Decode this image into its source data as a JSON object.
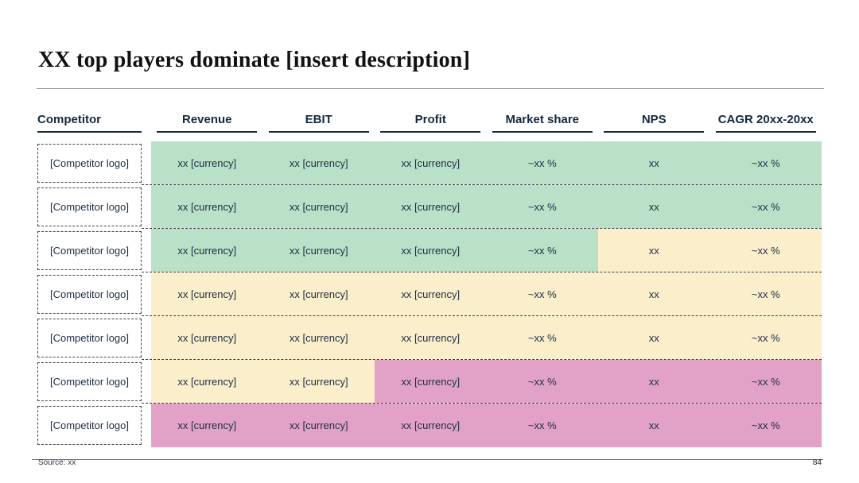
{
  "slide": {
    "title": "XX top players dominate [insert description]",
    "footer": {
      "source": "Source: xx",
      "page_number": "84"
    }
  },
  "colors": {
    "green": "#b9e1c8",
    "yellow": "#fbeecb",
    "pink": "#e2a2c7",
    "header_text": "#14293e",
    "cell_text": "#1d2d42"
  },
  "table": {
    "logo_placeholder": "[Competitor logo]",
    "columns": [
      {
        "key": "competitor",
        "label": "Competitor"
      },
      {
        "key": "revenue",
        "label": "Revenue"
      },
      {
        "key": "ebit",
        "label": "EBIT"
      },
      {
        "key": "profit",
        "label": "Profit"
      },
      {
        "key": "market-share",
        "label": "Market share"
      },
      {
        "key": "nps",
        "label": "NPS"
      },
      {
        "key": "cagr",
        "label": "CAGR 20xx-20xx"
      }
    ],
    "rows": [
      {
        "cells": [
          {
            "text": "xx [currency]",
            "color": "green"
          },
          {
            "text": "xx [currency]",
            "color": "green"
          },
          {
            "text": "xx [currency]",
            "color": "green"
          },
          {
            "text": "~xx %",
            "color": "green"
          },
          {
            "text": "xx",
            "color": "green"
          },
          {
            "text": "~xx %",
            "color": "green"
          }
        ]
      },
      {
        "cells": [
          {
            "text": "xx [currency]",
            "color": "green"
          },
          {
            "text": "xx [currency]",
            "color": "green"
          },
          {
            "text": "xx [currency]",
            "color": "green"
          },
          {
            "text": "~xx %",
            "color": "green"
          },
          {
            "text": "xx",
            "color": "green"
          },
          {
            "text": "~xx %",
            "color": "green"
          }
        ]
      },
      {
        "cells": [
          {
            "text": "xx [currency]",
            "color": "green"
          },
          {
            "text": "xx [currency]",
            "color": "green"
          },
          {
            "text": "xx [currency]",
            "color": "green"
          },
          {
            "text": "~xx %",
            "color": "green"
          },
          {
            "text": "xx",
            "color": "yellow"
          },
          {
            "text": "~xx %",
            "color": "yellow"
          }
        ]
      },
      {
        "cells": [
          {
            "text": "xx [currency]",
            "color": "yellow"
          },
          {
            "text": "xx [currency]",
            "color": "yellow"
          },
          {
            "text": "xx [currency]",
            "color": "yellow"
          },
          {
            "text": "~xx %",
            "color": "yellow"
          },
          {
            "text": "xx",
            "color": "yellow"
          },
          {
            "text": "~xx %",
            "color": "yellow"
          }
        ]
      },
      {
        "cells": [
          {
            "text": "xx [currency]",
            "color": "yellow"
          },
          {
            "text": "xx [currency]",
            "color": "yellow"
          },
          {
            "text": "xx [currency]",
            "color": "yellow"
          },
          {
            "text": "~xx %",
            "color": "yellow"
          },
          {
            "text": "xx",
            "color": "yellow"
          },
          {
            "text": "~xx %",
            "color": "yellow"
          }
        ]
      },
      {
        "cells": [
          {
            "text": "xx [currency]",
            "color": "yellow"
          },
          {
            "text": "xx [currency]",
            "color": "yellow"
          },
          {
            "text": "xx [currency]",
            "color": "pink"
          },
          {
            "text": "~xx %",
            "color": "pink"
          },
          {
            "text": "xx",
            "color": "pink"
          },
          {
            "text": "~xx %",
            "color": "pink"
          }
        ]
      },
      {
        "cells": [
          {
            "text": "xx [currency]",
            "color": "pink"
          },
          {
            "text": "xx [currency]",
            "color": "pink"
          },
          {
            "text": "xx [currency]",
            "color": "pink"
          },
          {
            "text": "~xx %",
            "color": "pink"
          },
          {
            "text": "xx",
            "color": "pink"
          },
          {
            "text": "~xx %",
            "color": "pink"
          }
        ]
      }
    ]
  }
}
